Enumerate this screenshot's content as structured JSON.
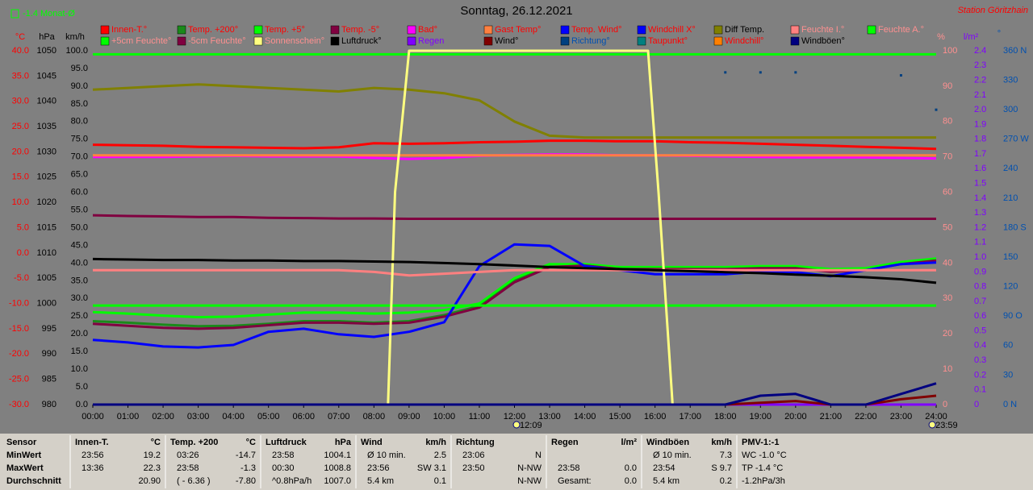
{
  "chart_data": {
    "type": "line",
    "title": "Sonntag, 26.12.2021",
    "subtitle": "Station Göritzhain",
    "month_note": "-1.4 Monat-Ø",
    "x": [
      0,
      1,
      2,
      3,
      4,
      5,
      6,
      7,
      8,
      9,
      10,
      11,
      12,
      13,
      14,
      15,
      16,
      17,
      18,
      19,
      20,
      21,
      22,
      23,
      24
    ],
    "xlim": [
      0,
      24
    ],
    "xticks": [
      {
        "value": 0,
        "label": "00:00"
      },
      {
        "value": 1,
        "label": "01:00"
      },
      {
        "value": 2,
        "label": "02:00"
      },
      {
        "value": 3,
        "label": "03:00"
      },
      {
        "value": 4,
        "label": "04:00"
      },
      {
        "value": 5,
        "label": "05:00"
      },
      {
        "value": 6,
        "label": "06:00"
      },
      {
        "value": 7,
        "label": "07:00"
      },
      {
        "value": 8,
        "label": "08:00"
      },
      {
        "value": 9,
        "label": "09:00"
      },
      {
        "value": 10,
        "label": "10:00"
      },
      {
        "value": 11,
        "label": "11:00"
      },
      {
        "value": 12,
        "label": "12:00"
      },
      {
        "value": 13,
        "label": "13:00"
      },
      {
        "value": 14,
        "label": "14:00"
      },
      {
        "value": 15,
        "label": "15:00"
      },
      {
        "value": 16,
        "label": "16:00"
      },
      {
        "value": 17,
        "label": "17:00"
      },
      {
        "value": 18,
        "label": "18:00"
      },
      {
        "value": 19,
        "label": "19:00"
      },
      {
        "value": 20,
        "label": "20:00"
      },
      {
        "value": 21,
        "label": "21:00"
      },
      {
        "value": 22,
        "label": "22:00"
      },
      {
        "value": 23,
        "label": "23:00"
      },
      {
        "value": 24,
        "label": "24:00"
      }
    ],
    "axes": [
      {
        "label": "°C",
        "color": "#ff0000",
        "side": "left",
        "lim": [
          -30,
          40
        ],
        "ticks": [
          {
            "value": -30,
            "label": "-30.0"
          },
          {
            "value": -25,
            "label": "-25.0"
          },
          {
            "value": -20,
            "label": "-20.0"
          },
          {
            "value": -15,
            "label": "-15.0"
          },
          {
            "value": -10,
            "label": "-10.0"
          },
          {
            "value": -5,
            "label": "-5.0"
          },
          {
            "value": 0,
            "label": "0.0"
          },
          {
            "value": 5,
            "label": "5.0"
          },
          {
            "value": 10,
            "label": "10.0"
          },
          {
            "value": 15,
            "label": "15.0"
          },
          {
            "value": 20,
            "label": "20.0"
          },
          {
            "value": 25,
            "label": "25.0"
          },
          {
            "value": 30,
            "label": "30.0"
          },
          {
            "value": 35,
            "label": "35.0"
          },
          {
            "value": 40,
            "label": "40.0"
          }
        ]
      },
      {
        "label": "hPa",
        "color": "#000000",
        "side": "left",
        "lim": [
          980,
          1050
        ],
        "ticks": [
          980,
          985,
          990,
          995,
          1000,
          1005,
          1010,
          1015,
          1020,
          1025,
          1030,
          1035,
          1040,
          1045,
          1050
        ]
      },
      {
        "label": "km/h",
        "color": "#000000",
        "side": "left",
        "lim": [
          0,
          100
        ],
        "ticks": [
          {
            "value": 0,
            "label": "0.0"
          },
          {
            "value": 5,
            "label": "5.0"
          },
          {
            "value": 10,
            "label": "10.0"
          },
          {
            "value": 15,
            "label": "15.0"
          },
          {
            "value": 20,
            "label": "20.0"
          },
          {
            "value": 25,
            "label": "25.0"
          },
          {
            "value": 30,
            "label": "30.0"
          },
          {
            "value": 35,
            "label": "35.0"
          },
          {
            "value": 40,
            "label": "40.0"
          },
          {
            "value": 45,
            "label": "45.0"
          },
          {
            "value": 50,
            "label": "50.0"
          },
          {
            "value": 55,
            "label": "55.0"
          },
          {
            "value": 60,
            "label": "60.0"
          },
          {
            "value": 65,
            "label": "65.0"
          },
          {
            "value": 70,
            "label": "70.0"
          },
          {
            "value": 75,
            "label": "75.0"
          },
          {
            "value": 80,
            "label": "80.0"
          },
          {
            "value": 85,
            "label": "85.0"
          },
          {
            "value": 90,
            "label": "90.0"
          },
          {
            "value": 95,
            "label": "95.0"
          },
          {
            "value": 100,
            "label": "100.0"
          }
        ]
      },
      {
        "label": "%",
        "color": "#ff9090",
        "side": "right",
        "lim": [
          0,
          100
        ],
        "ticks": [
          0,
          10,
          20,
          30,
          40,
          50,
          60,
          70,
          80,
          90,
          100
        ]
      },
      {
        "label": "l/m²",
        "color": "#8000ff",
        "side": "right",
        "lim": [
          0,
          2.4
        ],
        "ticks": [
          0,
          0.1,
          0.2,
          0.3,
          0.4,
          0.5,
          0.6,
          0.7,
          0.8,
          0.9,
          {
            "value": 1,
            "label": "1.0"
          },
          1.1,
          1.2,
          1.3,
          1.4,
          1.5,
          1.6,
          1.7,
          1.8,
          1.9,
          {
            "value": 2,
            "label": "2.0"
          },
          2.1,
          2.2,
          2.3,
          2.4
        ]
      },
      {
        "label": "°",
        "color": "#0050b0",
        "side": "right",
        "lim": [
          0,
          360
        ],
        "ticks": [
          {
            "value": 0,
            "label": "0 N"
          },
          30,
          60,
          {
            "value": 90,
            "label": "90 O"
          },
          120,
          150,
          {
            "value": 180,
            "label": "180 S"
          },
          210,
          240,
          {
            "value": 270,
            "label": "270 W"
          },
          300,
          330,
          {
            "value": 360,
            "label": "360 N"
          }
        ]
      }
    ],
    "series": [
      {
        "name": "Innen-T.°",
        "color": "#ff0000",
        "axis": 0,
        "values": [
          21.4,
          21.3,
          21.2,
          21.0,
          20.9,
          20.8,
          20.7,
          20.9,
          21.7,
          21.6,
          21.7,
          21.9,
          22.0,
          22.2,
          22.2,
          22.1,
          22.1,
          21.9,
          21.8,
          21.6,
          21.4,
          21.2,
          21.0,
          20.8,
          20.6
        ]
      },
      {
        "name": "Temp. +200°",
        "color": "#1a8a1a",
        "axis": 0,
        "values": [
          -13.5,
          -13.8,
          -14.2,
          -14.5,
          -14.4,
          -14.0,
          -13.5,
          -13.5,
          -13.8,
          -13.5,
          -12.3,
          -10.5,
          -5.5,
          -2.5,
          -2.3,
          -3.0,
          -3.0,
          -3.0,
          -3.0,
          -2.8,
          -2.8,
          -3.5,
          -3.2,
          -2.0,
          -1.3
        ]
      },
      {
        "name": "Temp. +5°",
        "color": "#00ff00",
        "axis": 0,
        "values": [
          -11.7,
          -12.0,
          -12.4,
          -12.7,
          -12.6,
          -12.2,
          -11.8,
          -11.8,
          -12.0,
          -11.8,
          -11.3,
          -10.0,
          -5.0,
          -2.2,
          -2.2,
          -2.8,
          -2.8,
          -2.8,
          -2.8,
          -2.6,
          -2.6,
          -3.2,
          -3.0,
          -1.8,
          -1.1
        ]
      },
      {
        "name": "Temp. -5°",
        "color": "#800040",
        "axis": 0,
        "values": [
          -14.0,
          -14.4,
          -14.8,
          -15.0,
          -14.8,
          -14.3,
          -13.8,
          -13.8,
          -14.0,
          -13.8,
          -12.6,
          -10.8,
          -5.8,
          -2.8,
          -2.5,
          -3.2,
          -3.2,
          -3.2,
          -3.2,
          -3.0,
          -3.0,
          -3.7,
          -3.4,
          -2.2,
          -1.5
        ]
      },
      {
        "name": "Bad°",
        "color": "#ff00ff",
        "axis": 0,
        "values": [
          19.0,
          19.0,
          19.0,
          19.1,
          19.2,
          19.1,
          19.1,
          19.1,
          18.8,
          18.6,
          18.8,
          19.2,
          19.4,
          19.5,
          19.5,
          19.3,
          19.3,
          19.2,
          19.1,
          19.0,
          18.9,
          18.9,
          18.9,
          18.8,
          18.7
        ]
      },
      {
        "name": "Gast Temp°",
        "color": "#ff8040",
        "axis": 0,
        "values": [
          19.3,
          19.3,
          19.3,
          19.3,
          19.3,
          19.3,
          19.3,
          19.3,
          19.3,
          19.3,
          19.3,
          19.3,
          19.3,
          19.3,
          19.3,
          19.3,
          19.3,
          19.3,
          19.3,
          19.3,
          19.3,
          19.3,
          19.3,
          19.3,
          19.3
        ]
      },
      {
        "name": "Temp. Wind°",
        "color": "#0000ff",
        "axis": 0,
        "values": [
          -17.2,
          -17.7,
          -18.5,
          -18.7,
          -18.2,
          -15.6,
          -15.0,
          -16.1,
          -16.6,
          -15.6,
          -13.7,
          -2.6,
          1.7,
          1.4,
          -2.6,
          -3.4,
          -4.2,
          -4.2,
          -4.2,
          -3.7,
          -3.8,
          -4.6,
          -3.4,
          -2.2,
          -1.9
        ]
      },
      {
        "name": "Windchill X°",
        "color": "#0000ff",
        "axis": 0
      },
      {
        "name": "Diff Temp.",
        "color": "#808000",
        "axis": 2,
        "values": [
          89,
          89.5,
          90,
          90.5,
          90,
          89.5,
          89,
          88.5,
          89.5,
          89,
          88,
          86,
          80,
          76,
          75.5,
          75.5,
          75.5,
          75.5,
          75.5,
          75.5,
          75.5,
          75.5,
          75.5,
          75.5,
          75.5
        ]
      },
      {
        "name": "Feuchte I.°",
        "color": "#ff8080",
        "axis": 3,
        "values": [
          38,
          38,
          38,
          38,
          38,
          38,
          38,
          38,
          37.5,
          36.5,
          37,
          37.5,
          38,
          38,
          38,
          38,
          38,
          38,
          38,
          38,
          38,
          38,
          38,
          38,
          38
        ]
      },
      {
        "name": "Feuchte A.°",
        "color": "#00ff00",
        "axis": 3,
        "values": [
          99,
          99,
          99,
          99,
          99,
          99,
          99,
          99,
          99,
          99,
          99,
          99,
          99,
          99,
          99,
          99,
          99,
          99,
          99,
          99,
          99,
          99,
          99,
          99,
          99
        ]
      },
      {
        "name": "+5cm Feuchte°",
        "color": "#00ff00",
        "axis": 3,
        "values": [
          28,
          28,
          28,
          28,
          28,
          28,
          28,
          28,
          28,
          28,
          28,
          28,
          28,
          28,
          28,
          28,
          28,
          28,
          28,
          28,
          28,
          28,
          28,
          28,
          28
        ]
      },
      {
        "name": "-5cm Feuchte°",
        "color": "#800040",
        "axis": 3,
        "values": [
          53.5,
          53.3,
          53.2,
          53,
          53,
          52.8,
          52.7,
          52.6,
          52.6,
          52.5,
          52.5,
          52.5,
          52.5,
          52.5,
          52.5,
          52.5,
          52.5,
          52.5,
          52.5,
          52.5,
          52.5,
          52.5,
          52.5,
          52.5,
          52.5
        ]
      },
      {
        "name": "Sonnenschein°",
        "color": "#ffff80",
        "axis": 3,
        "x": [
          0,
          8.4,
          8.6,
          9,
          15.8,
          16.1,
          16.5,
          24
        ],
        "values": [
          0,
          0,
          60,
          100,
          100,
          60,
          0,
          0
        ]
      },
      {
        "name": "Luftdruck°",
        "color": "#000000",
        "axis": 1,
        "values": [
          1008.8,
          1008.7,
          1008.6,
          1008.6,
          1008.5,
          1008.5,
          1008.4,
          1008.4,
          1008.3,
          1008.2,
          1008.0,
          1007.8,
          1007.5,
          1007.2,
          1007.0,
          1006.8,
          1006.6,
          1006.4,
          1006.2,
          1006.0,
          1005.7,
          1005.5,
          1005.2,
          1004.8,
          1004.1
        ]
      },
      {
        "name": "Regen",
        "color": "#8000ff",
        "axis": 4,
        "values": [
          0,
          0,
          0,
          0,
          0,
          0,
          0,
          0,
          0,
          0,
          0,
          0,
          0,
          0,
          0,
          0,
          0,
          0,
          0,
          0,
          0,
          0,
          0,
          0,
          0
        ]
      },
      {
        "name": "Wind°",
        "color": "#800000",
        "axis": 2,
        "values": [
          0,
          0,
          0,
          0,
          0,
          0,
          0,
          0,
          0,
          0,
          0,
          0,
          0,
          0,
          0,
          0,
          0,
          0,
          0,
          0.5,
          1,
          0,
          0,
          1.5,
          2.5
        ]
      },
      {
        "name": "Richtung°",
        "color": "#004080",
        "axis": 5,
        "marker": "dot",
        "values": [
          null,
          null,
          null,
          null,
          null,
          null,
          null,
          null,
          null,
          null,
          null,
          null,
          null,
          null,
          null,
          null,
          null,
          null,
          338,
          338,
          338,
          null,
          null,
          335,
          300
        ]
      },
      {
        "name": "Taupunkt°",
        "color": "#008080",
        "axis": 0
      },
      {
        "name": "Windchill°",
        "color": "#ff8000",
        "axis": 0
      },
      {
        "name": "Windböen°",
        "color": "#000080",
        "axis": 2,
        "values": [
          0,
          0,
          0,
          0,
          0,
          0,
          0,
          0,
          0,
          0,
          0,
          0,
          0,
          0,
          0,
          0,
          0,
          0,
          0,
          2.5,
          3,
          0,
          0,
          3,
          6
        ]
      }
    ],
    "annotations": [
      {
        "text": "12:09",
        "x": 12.15
      },
      {
        "text": "23:59",
        "x": 23.98
      }
    ]
  },
  "stats": {
    "row_labels": [
      "Sensor",
      "MinWert",
      "MaxWert",
      "Durchschnitt"
    ],
    "blocks": [
      {
        "name": "Innen-T.",
        "unit": "°C",
        "rows": [
          [
            "23:56",
            "19.2"
          ],
          [
            "13:36",
            "22.3"
          ],
          [
            "20.90"
          ]
        ]
      },
      {
        "name": "Temp. +200",
        "unit": "°C",
        "rows": [
          [
            "03:26",
            "-14.7"
          ],
          [
            "23:58",
            "-1.3"
          ],
          [
            "( - 6.36 )",
            "-7.80"
          ]
        ]
      },
      {
        "name": "Luftdruck",
        "unit": "hPa",
        "rows": [
          [
            "23:58",
            "1004.1"
          ],
          [
            "00:30",
            "1008.8"
          ],
          [
            "^0.8hPa/h",
            "1007.0"
          ]
        ]
      },
      {
        "name": "Wind",
        "unit": "km/h",
        "rows": [
          [
            "Ø 10 min.",
            "2.5"
          ],
          [
            "23:56",
            "SW 3.1"
          ],
          [
            "5.4 km",
            "0.1"
          ]
        ]
      },
      {
        "name": "Richtung",
        "rows": [
          [
            "23:06",
            "N"
          ],
          [
            "23:50",
            "N-NW"
          ],
          [
            "N-NW"
          ]
        ]
      },
      {
        "name": "Regen",
        "unit": "l/m²",
        "rows": [
          [],
          [
            "23:58",
            "0.0"
          ],
          [
            "Gesamt:",
            "0.0"
          ]
        ]
      },
      {
        "name": "Windböen",
        "unit": "km/h",
        "rows": [
          [
            "Ø 10 min.",
            "7.3"
          ],
          [
            "23:54",
            "S 9.7"
          ],
          [
            "5.4 km",
            "0.2"
          ]
        ]
      },
      {
        "name": "PMV-1:-1",
        "rows": [
          [
            "WC -1.0 °C"
          ],
          [
            "TP -1.4 °C"
          ],
          [
            "-1.2hPa/3h"
          ]
        ]
      }
    ]
  }
}
